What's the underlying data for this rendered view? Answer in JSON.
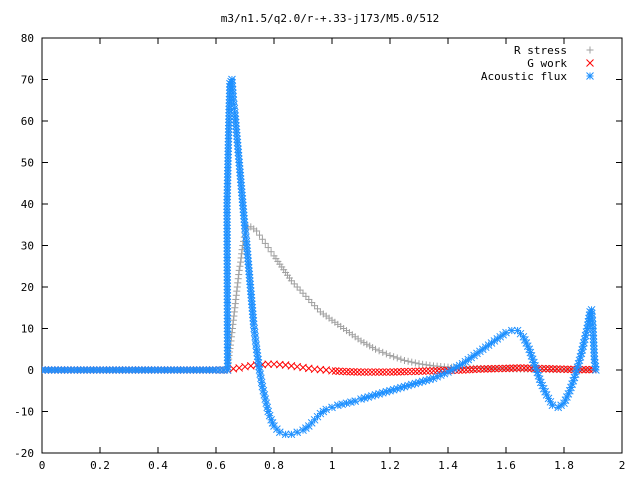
{
  "chart_data": {
    "type": "scatter",
    "title": "m3/n1.5/q2.0/r-+.33-j173/M5.0/512",
    "xlabel": "",
    "ylabel": "",
    "xlim": [
      0,
      2
    ],
    "ylim": [
      -20,
      80
    ],
    "xticks": [
      "0",
      "0.2",
      "0.4",
      "0.6",
      "0.8",
      "1",
      "1.2",
      "1.4",
      "1.6",
      "1.8",
      "2"
    ],
    "yticks": [
      "-20",
      "-10",
      "0",
      "10",
      "20",
      "30",
      "40",
      "50",
      "60",
      "70",
      "80"
    ],
    "grid": false,
    "legend_position": "top-right",
    "series": [
      {
        "name": "R stress",
        "marker": "plus",
        "color": "#a0a0a0",
        "points": [
          [
            0.0,
            0
          ],
          [
            0.2,
            0
          ],
          [
            0.4,
            0
          ],
          [
            0.6,
            0
          ],
          [
            0.64,
            0
          ],
          [
            0.645,
            3.5
          ],
          [
            0.65,
            6
          ],
          [
            0.655,
            9
          ],
          [
            0.66,
            12
          ],
          [
            0.665,
            15
          ],
          [
            0.67,
            18
          ],
          [
            0.675,
            21
          ],
          [
            0.68,
            24
          ],
          [
            0.685,
            26
          ],
          [
            0.69,
            29
          ],
          [
            0.695,
            31
          ],
          [
            0.7,
            33
          ],
          [
            0.705,
            34
          ],
          [
            0.71,
            34.5
          ],
          [
            0.72,
            34.5
          ],
          [
            0.73,
            34
          ],
          [
            0.74,
            33.5
          ],
          [
            0.75,
            32.5
          ],
          [
            0.76,
            31.5
          ],
          [
            0.77,
            30.5
          ],
          [
            0.78,
            29.5
          ],
          [
            0.79,
            28.5
          ],
          [
            0.8,
            27.5
          ],
          [
            0.82,
            25.5
          ],
          [
            0.84,
            23.5
          ],
          [
            0.86,
            21.5
          ],
          [
            0.88,
            20
          ],
          [
            0.9,
            18.5
          ],
          [
            0.92,
            17
          ],
          [
            0.94,
            15.5
          ],
          [
            0.96,
            14
          ],
          [
            0.98,
            13
          ],
          [
            1.0,
            12
          ],
          [
            1.02,
            11
          ],
          [
            1.05,
            9.5
          ],
          [
            1.08,
            8
          ],
          [
            1.1,
            7
          ],
          [
            1.15,
            5
          ],
          [
            1.2,
            3.5
          ],
          [
            1.25,
            2.3
          ],
          [
            1.3,
            1.5
          ],
          [
            1.35,
            1.0
          ],
          [
            1.4,
            0.7
          ],
          [
            1.45,
            0.5
          ],
          [
            1.5,
            0.4
          ],
          [
            1.55,
            0.3
          ],
          [
            1.6,
            0.3
          ],
          [
            1.65,
            0.2
          ],
          [
            1.7,
            0.2
          ],
          [
            1.75,
            0.1
          ],
          [
            1.8,
            0.1
          ],
          [
            1.85,
            0.1
          ],
          [
            1.9,
            0.1
          ]
        ]
      },
      {
        "name": "G work",
        "marker": "cross",
        "color": "#ff0000",
        "points": [
          [
            0.0,
            0
          ],
          [
            0.2,
            0
          ],
          [
            0.4,
            0
          ],
          [
            0.6,
            0
          ],
          [
            0.64,
            0
          ],
          [
            0.66,
            0.3
          ],
          [
            0.68,
            0.5
          ],
          [
            0.7,
            0.8
          ],
          [
            0.72,
            1.0
          ],
          [
            0.74,
            1.2
          ],
          [
            0.76,
            1.3
          ],
          [
            0.78,
            1.4
          ],
          [
            0.8,
            1.4
          ],
          [
            0.82,
            1.3
          ],
          [
            0.84,
            1.2
          ],
          [
            0.86,
            1.0
          ],
          [
            0.88,
            0.8
          ],
          [
            0.9,
            0.6
          ],
          [
            0.92,
            0.4
          ],
          [
            0.94,
            0.2
          ],
          [
            0.96,
            0.1
          ],
          [
            0.98,
            0.0
          ],
          [
            1.0,
            -0.2
          ],
          [
            1.05,
            -0.4
          ],
          [
            1.1,
            -0.5
          ],
          [
            1.15,
            -0.5
          ],
          [
            1.2,
            -0.5
          ],
          [
            1.25,
            -0.4
          ],
          [
            1.3,
            -0.3
          ],
          [
            1.35,
            -0.2
          ],
          [
            1.4,
            -0.1
          ],
          [
            1.45,
            0.0
          ],
          [
            1.5,
            0.2
          ],
          [
            1.55,
            0.3
          ],
          [
            1.6,
            0.4
          ],
          [
            1.65,
            0.5
          ],
          [
            1.7,
            0.4
          ],
          [
            1.75,
            0.3
          ],
          [
            1.8,
            0.2
          ],
          [
            1.85,
            0.1
          ],
          [
            1.9,
            0.1
          ]
        ]
      },
      {
        "name": "Acoustic flux",
        "marker": "star",
        "color": "#1e90ff",
        "points": [
          [
            0.0,
            0
          ],
          [
            0.1,
            0
          ],
          [
            0.2,
            0
          ],
          [
            0.3,
            0
          ],
          [
            0.4,
            0
          ],
          [
            0.5,
            0
          ],
          [
            0.6,
            0
          ],
          [
            0.64,
            0
          ],
          [
            0.638,
            39.5
          ],
          [
            0.645,
            62
          ],
          [
            0.648,
            69
          ],
          [
            0.652,
            69.5
          ],
          [
            0.655,
            70
          ],
          [
            0.66,
            65
          ],
          [
            0.665,
            62
          ],
          [
            0.67,
            58
          ],
          [
            0.675,
            54
          ],
          [
            0.68,
            50
          ],
          [
            0.685,
            46
          ],
          [
            0.69,
            42
          ],
          [
            0.695,
            38
          ],
          [
            0.7,
            34
          ],
          [
            0.705,
            31
          ],
          [
            0.71,
            27
          ],
          [
            0.715,
            23
          ],
          [
            0.72,
            19
          ],
          [
            0.725,
            15
          ],
          [
            0.73,
            11
          ],
          [
            0.735,
            8
          ],
          [
            0.74,
            5
          ],
          [
            0.745,
            2.5
          ],
          [
            0.75,
            0
          ],
          [
            0.755,
            -2
          ],
          [
            0.76,
            -4
          ],
          [
            0.77,
            -7
          ],
          [
            0.78,
            -10
          ],
          [
            0.79,
            -12
          ],
          [
            0.8,
            -13.5
          ],
          [
            0.82,
            -15
          ],
          [
            0.84,
            -15.5
          ],
          [
            0.86,
            -15.5
          ],
          [
            0.88,
            -15
          ],
          [
            0.9,
            -14.5
          ],
          [
            0.92,
            -13.5
          ],
          [
            0.94,
            -12
          ],
          [
            0.96,
            -10.5
          ],
          [
            0.98,
            -9.5
          ],
          [
            1.0,
            -9
          ],
          [
            1.02,
            -8.5
          ],
          [
            1.05,
            -8
          ],
          [
            1.08,
            -7.5
          ],
          [
            1.1,
            -7
          ],
          [
            1.15,
            -6
          ],
          [
            1.2,
            -5
          ],
          [
            1.25,
            -4
          ],
          [
            1.3,
            -3
          ],
          [
            1.35,
            -2
          ],
          [
            1.4,
            -0.5
          ],
          [
            1.45,
            1.5
          ],
          [
            1.5,
            4
          ],
          [
            1.55,
            6.5
          ],
          [
            1.6,
            9
          ],
          [
            1.62,
            9.5
          ],
          [
            1.64,
            9.5
          ],
          [
            1.66,
            8
          ],
          [
            1.68,
            5
          ],
          [
            1.7,
            1
          ],
          [
            1.72,
            -3
          ],
          [
            1.74,
            -6
          ],
          [
            1.76,
            -8.5
          ],
          [
            1.78,
            -9
          ],
          [
            1.8,
            -8
          ],
          [
            1.82,
            -5
          ],
          [
            1.84,
            -1
          ],
          [
            1.86,
            4
          ],
          [
            1.88,
            10
          ],
          [
            1.89,
            14
          ],
          [
            1.895,
            14.5
          ],
          [
            1.9,
            10
          ],
          [
            1.905,
            2.5
          ],
          [
            1.91,
            0
          ]
        ]
      }
    ]
  }
}
